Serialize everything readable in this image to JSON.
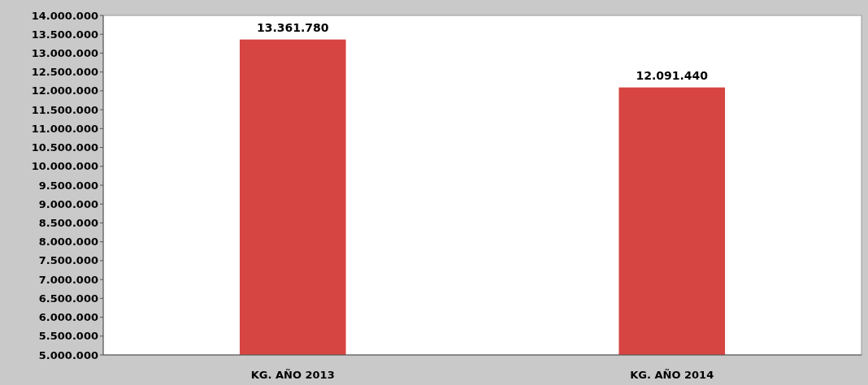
{
  "chart_data": {
    "type": "bar",
    "categories": [
      "KG. AÑO 2013",
      "KG. AÑO 2014"
    ],
    "values": [
      13361780,
      12091440
    ],
    "color": "#d64541",
    "value_labels": [
      "13.361.780",
      "12.091.440"
    ],
    "ylim": [
      5000000,
      14000000
    ],
    "yticks": [
      {
        "value": 5000000,
        "label": "5.000.000"
      },
      {
        "value": 5500000,
        "label": "5.500.000"
      },
      {
        "value": 6000000,
        "label": "6.000.000"
      },
      {
        "value": 6500000,
        "label": "6.500.000"
      },
      {
        "value": 7000000,
        "label": "7.000.000"
      },
      {
        "value": 7500000,
        "label": "7.500.000"
      },
      {
        "value": 8000000,
        "label": "8.000.000"
      },
      {
        "value": 8500000,
        "label": "8.500.000"
      },
      {
        "value": 9000000,
        "label": "9.000.000"
      },
      {
        "value": 9500000,
        "label": "9.500.000"
      },
      {
        "value": 10000000,
        "label": "10.000.000"
      },
      {
        "value": 10500000,
        "label": "10.500.000"
      },
      {
        "value": 11000000,
        "label": "11.000.000"
      },
      {
        "value": 11500000,
        "label": "11.500.000"
      },
      {
        "value": 12000000,
        "label": "12.000.000"
      },
      {
        "value": 12500000,
        "label": "12.500.000"
      },
      {
        "value": 13000000,
        "label": "13.000.000"
      },
      {
        "value": 13500000,
        "label": "13.500.000"
      },
      {
        "value": 14000000,
        "label": "14.000.000"
      }
    ],
    "grid": false
  }
}
